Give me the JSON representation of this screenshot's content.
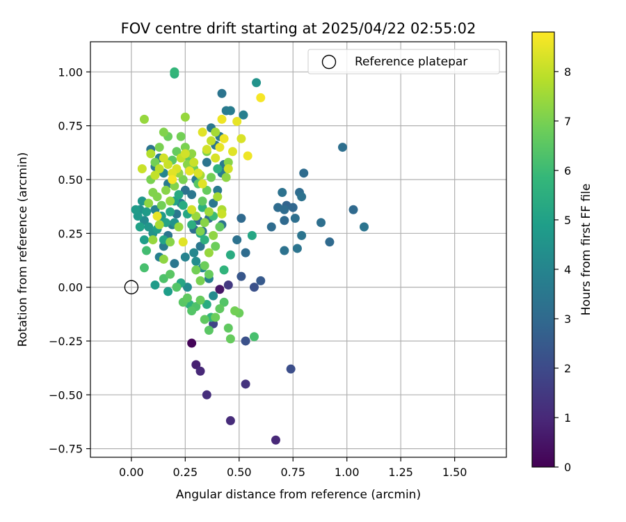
{
  "chart_data": {
    "type": "scatter",
    "title": "FOV centre drift starting at 2025/04/22 02:55:02",
    "xlabel": "Angular distance from reference (arcmin)",
    "ylabel": "Rotation from reference (arcmin)",
    "xlim": [
      -0.19,
      1.74
    ],
    "ylim": [
      -0.79,
      1.14
    ],
    "xticks": [
      0.0,
      0.25,
      0.5,
      0.75,
      1.0,
      1.25,
      1.5
    ],
    "xtick_labels": [
      "0.00",
      "0.25",
      "0.50",
      "0.75",
      "1.00",
      "1.25",
      "1.50"
    ],
    "yticks": [
      -0.75,
      -0.5,
      -0.25,
      0.0,
      0.25,
      0.5,
      0.75,
      1.0
    ],
    "ytick_labels": [
      "−0.75",
      "−0.50",
      "−0.25",
      "0.00",
      "0.25",
      "0.50",
      "0.75",
      "1.00"
    ],
    "grid": true,
    "legend": {
      "placement": "top-right",
      "entries": [
        "Reference platepar"
      ]
    },
    "reference_point": {
      "name": "Reference platepar",
      "x": 0.0,
      "y": 0.0,
      "marker": "open-circle"
    },
    "colorbar": {
      "label": "Hours from first FF file",
      "range": [
        0,
        8.8
      ],
      "ticks": [
        0,
        1,
        2,
        3,
        4,
        5,
        6,
        7,
        8
      ],
      "tick_labels": [
        "0",
        "1",
        "2",
        "3",
        "4",
        "5",
        "6",
        "7",
        "8"
      ],
      "colormap": "viridis",
      "stops": [
        "#440154",
        "#482878",
        "#3e4989",
        "#31688e",
        "#26828e",
        "#1f9e89",
        "#35b779",
        "#6ece58",
        "#b5de2b",
        "#fde725"
      ]
    },
    "points": [
      [
        0.28,
        -0.26,
        0.1
      ],
      [
        0.3,
        -0.36,
        0.8
      ],
      [
        0.32,
        -0.39,
        1.0
      ],
      [
        0.35,
        -0.5,
        1.2
      ],
      [
        0.46,
        -0.62,
        1.1
      ],
      [
        0.53,
        -0.45,
        1.3
      ],
      [
        0.67,
        -0.71,
        1.0
      ],
      [
        0.74,
        -0.38,
        2.1
      ],
      [
        0.53,
        -0.25,
        2.2
      ],
      [
        0.41,
        -0.01,
        0.5
      ],
      [
        0.45,
        0.01,
        1.5
      ],
      [
        0.51,
        0.05,
        2.4
      ],
      [
        0.57,
        0.0,
        2.2
      ],
      [
        0.6,
        0.03,
        2.5
      ],
      [
        0.38,
        -0.17,
        1.8
      ],
      [
        0.49,
        0.22,
        3.3
      ],
      [
        0.53,
        0.16,
        3.1
      ],
      [
        0.51,
        0.32,
        3.0
      ],
      [
        0.65,
        0.28,
        3.1
      ],
      [
        0.68,
        0.37,
        3.1
      ],
      [
        0.71,
        0.31,
        3.0
      ],
      [
        0.71,
        0.17,
        3.3
      ],
      [
        0.72,
        0.38,
        2.8
      ],
      [
        0.75,
        0.37,
        2.9
      ],
      [
        0.76,
        0.32,
        3.2
      ],
      [
        0.77,
        0.18,
        3.4
      ],
      [
        0.78,
        0.44,
        3.1
      ],
      [
        0.79,
        0.42,
        3.3
      ],
      [
        0.79,
        0.24,
        3.4
      ],
      [
        0.8,
        0.53,
        3.1
      ],
      [
        0.88,
        0.3,
        3.2
      ],
      [
        0.92,
        0.21,
        3.0
      ],
      [
        0.98,
        0.65,
        3.2
      ],
      [
        1.03,
        0.36,
        3.0
      ],
      [
        1.08,
        0.28,
        3.4
      ],
      [
        0.7,
        0.44,
        3.3
      ],
      [
        0.71,
        0.36,
        3.1
      ],
      [
        0.42,
        0.9,
        3.4
      ],
      [
        0.44,
        0.82,
        3.6
      ],
      [
        0.46,
        0.82,
        3.7
      ],
      [
        0.52,
        0.8,
        3.8
      ],
      [
        0.58,
        0.95,
        4.5
      ],
      [
        0.37,
        0.74,
        3.5
      ],
      [
        0.39,
        0.66,
        3.4
      ],
      [
        0.41,
        0.7,
        3.5
      ],
      [
        0.43,
        0.57,
        3.6
      ],
      [
        0.42,
        0.53,
        3.7
      ],
      [
        0.4,
        0.45,
        3.6
      ],
      [
        0.38,
        0.39,
        3.5
      ],
      [
        0.42,
        0.29,
        3.4
      ],
      [
        0.36,
        0.32,
        3.2
      ],
      [
        0.33,
        0.26,
        3.3
      ],
      [
        0.31,
        0.31,
        3.0
      ],
      [
        0.29,
        0.27,
        3.2
      ],
      [
        0.32,
        0.19,
        3.5
      ],
      [
        0.35,
        0.58,
        3.4
      ],
      [
        0.3,
        0.5,
        3.7
      ],
      [
        0.28,
        0.43,
        3.5
      ],
      [
        0.25,
        0.45,
        3.3
      ],
      [
        0.23,
        0.39,
        3.6
      ],
      [
        0.21,
        0.34,
        3.5
      ],
      [
        0.19,
        0.29,
        3.7
      ],
      [
        0.17,
        0.24,
        3.4
      ],
      [
        0.15,
        0.19,
        3.6
      ],
      [
        0.13,
        0.14,
        3.8
      ],
      [
        0.11,
        0.36,
        3.9
      ],
      [
        0.09,
        0.64,
        3.4
      ],
      [
        0.11,
        0.56,
        3.6
      ],
      [
        0.13,
        0.6,
        3.8
      ],
      [
        0.15,
        0.53,
        4.0
      ],
      [
        0.17,
        0.48,
        3.6
      ],
      [
        0.2,
        0.11,
        3.5
      ],
      [
        0.25,
        0.14,
        3.9
      ],
      [
        0.29,
        0.16,
        4.1
      ],
      [
        0.3,
        0.12,
        4.3
      ],
      [
        0.33,
        0.09,
        4.1
      ],
      [
        0.36,
        0.04,
        3.8
      ],
      [
        0.38,
        -0.04,
        4.2
      ],
      [
        0.26,
        0.0,
        4.2
      ],
      [
        0.2,
        0.3,
        4.5
      ],
      [
        0.04,
        0.36,
        4.4
      ],
      [
        0.06,
        0.31,
        4.2
      ],
      [
        0.05,
        0.4,
        4.6
      ],
      [
        0.08,
        0.28,
        4.6
      ],
      [
        0.03,
        0.33,
        4.7
      ],
      [
        0.02,
        0.36,
        4.8
      ],
      [
        0.07,
        0.35,
        4.8
      ],
      [
        0.06,
        0.22,
        4.9
      ],
      [
        0.04,
        0.28,
        5.0
      ],
      [
        0.1,
        0.25,
        4.5
      ],
      [
        0.12,
        0.27,
        4.9
      ],
      [
        0.14,
        0.33,
        4.7
      ],
      [
        0.16,
        0.3,
        5.1
      ],
      [
        0.18,
        0.35,
        5.2
      ],
      [
        0.2,
        0.4,
        5.0
      ],
      [
        0.22,
        0.43,
        5.3
      ],
      [
        0.24,
        0.38,
        5.4
      ],
      [
        0.26,
        0.34,
        5.2
      ],
      [
        0.28,
        0.29,
        5.5
      ],
      [
        0.32,
        0.25,
        5.3
      ],
      [
        0.34,
        0.22,
        5.6
      ],
      [
        0.33,
        0.37,
        5.6
      ],
      [
        0.15,
        0.22,
        5.1
      ],
      [
        0.11,
        0.01,
        4.8
      ],
      [
        0.17,
        -0.02,
        4.9
      ],
      [
        0.23,
        0.02,
        5.2
      ],
      [
        0.27,
        -0.08,
        5.6
      ],
      [
        0.35,
        -0.08,
        5.4
      ],
      [
        0.37,
        -0.14,
        5.8
      ],
      [
        0.43,
        0.08,
        5.7
      ],
      [
        0.46,
        0.15,
        5.4
      ],
      [
        0.56,
        0.24,
        5.2
      ],
      [
        0.2,
        0.99,
        5.6
      ],
      [
        0.2,
        1.0,
        5.8
      ],
      [
        0.4,
        0.55,
        5.6
      ],
      [
        0.38,
        0.33,
        6.0
      ],
      [
        0.07,
        0.17,
        6.1
      ],
      [
        0.06,
        0.09,
        6.2
      ],
      [
        0.15,
        0.04,
        6.3
      ],
      [
        0.18,
        0.06,
        6.5
      ],
      [
        0.21,
        0.0,
        6.4
      ],
      [
        0.24,
        -0.07,
        6.5
      ],
      [
        0.26,
        -0.05,
        6.6
      ],
      [
        0.28,
        -0.11,
        6.4
      ],
      [
        0.3,
        -0.09,
        6.3
      ],
      [
        0.32,
        -0.06,
        6.7
      ],
      [
        0.34,
        -0.15,
        6.6
      ],
      [
        0.36,
        -0.2,
        6.5
      ],
      [
        0.39,
        -0.14,
        6.8
      ],
      [
        0.41,
        -0.1,
        6.6
      ],
      [
        0.43,
        -0.07,
        6.4
      ],
      [
        0.45,
        -0.19,
        6.6
      ],
      [
        0.46,
        -0.24,
        6.7
      ],
      [
        0.48,
        -0.11,
        6.9
      ],
      [
        0.5,
        -0.12,
        6.8
      ],
      [
        0.57,
        -0.23,
        6.2
      ],
      [
        0.3,
        0.08,
        6.9
      ],
      [
        0.32,
        0.03,
        7.0
      ],
      [
        0.34,
        0.1,
        6.8
      ],
      [
        0.36,
        0.06,
        6.7
      ],
      [
        0.39,
        0.19,
        6.8
      ],
      [
        0.41,
        0.28,
        6.6
      ],
      [
        0.37,
        0.51,
        6.9
      ],
      [
        0.35,
        0.45,
        6.7
      ],
      [
        0.33,
        0.4,
        6.6
      ],
      [
        0.31,
        0.48,
        6.5
      ],
      [
        0.29,
        0.55,
        6.8
      ],
      [
        0.27,
        0.6,
        6.6
      ],
      [
        0.25,
        0.65,
        7.0
      ],
      [
        0.23,
        0.7,
        6.9
      ],
      [
        0.21,
        0.63,
        6.7
      ],
      [
        0.19,
        0.59,
        6.5
      ],
      [
        0.17,
        0.7,
        6.8
      ],
      [
        0.15,
        0.72,
        7.1
      ],
      [
        0.13,
        0.65,
        7.0
      ],
      [
        0.11,
        0.58,
        6.9
      ],
      [
        0.09,
        0.5,
        7.0
      ],
      [
        0.1,
        0.44,
        7.1
      ],
      [
        0.08,
        0.39,
        7.3
      ],
      [
        0.12,
        0.42,
        7.1
      ],
      [
        0.14,
        0.38,
        6.9
      ],
      [
        0.16,
        0.45,
        7.2
      ],
      [
        0.18,
        0.4,
        7.4
      ],
      [
        0.2,
        0.47,
        7.1
      ],
      [
        0.22,
        0.53,
        7.3
      ],
      [
        0.24,
        0.5,
        7.0
      ],
      [
        0.26,
        0.57,
        7.2
      ],
      [
        0.28,
        0.62,
        7.3
      ],
      [
        0.3,
        0.33,
        7.4
      ],
      [
        0.32,
        0.26,
        7.1
      ],
      [
        0.34,
        0.3,
        7.2
      ],
      [
        0.36,
        0.35,
        7.5
      ],
      [
        0.38,
        0.24,
        7.3
      ],
      [
        0.36,
        0.16,
        7.4
      ],
      [
        0.06,
        0.78,
        7.4
      ],
      [
        0.25,
        0.79,
        7.4
      ],
      [
        0.35,
        0.63,
        7.1
      ],
      [
        0.39,
        0.72,
        7.6
      ],
      [
        0.4,
        0.42,
        7.6
      ],
      [
        0.42,
        0.36,
        7.7
      ],
      [
        0.1,
        0.22,
        7.4
      ],
      [
        0.13,
        0.29,
        7.6
      ],
      [
        0.22,
        0.28,
        7.4
      ],
      [
        0.45,
        0.58,
        7.2
      ],
      [
        0.44,
        0.51,
        7.3
      ],
      [
        0.18,
        0.21,
        7.2
      ],
      [
        0.15,
        0.13,
        7.3
      ],
      [
        0.32,
        0.52,
        7.6
      ],
      [
        0.09,
        0.62,
        7.8
      ],
      [
        0.11,
        0.52,
        8.0
      ],
      [
        0.13,
        0.55,
        7.9
      ],
      [
        0.15,
        0.6,
        8.2
      ],
      [
        0.17,
        0.57,
        8.1
      ],
      [
        0.19,
        0.53,
        8.4
      ],
      [
        0.21,
        0.55,
        8.3
      ],
      [
        0.23,
        0.6,
        8.0
      ],
      [
        0.25,
        0.62,
        8.2
      ],
      [
        0.27,
        0.54,
        8.5
      ],
      [
        0.29,
        0.58,
        8.1
      ],
      [
        0.31,
        0.53,
        8.3
      ],
      [
        0.33,
        0.48,
        8.4
      ],
      [
        0.35,
        0.64,
        8.2
      ],
      [
        0.37,
        0.68,
        8.0
      ],
      [
        0.39,
        0.6,
        8.3
      ],
      [
        0.41,
        0.65,
        8.5
      ],
      [
        0.43,
        0.69,
        8.6
      ],
      [
        0.45,
        0.55,
        8.2
      ],
      [
        0.47,
        0.63,
        8.4
      ],
      [
        0.49,
        0.77,
        8.5
      ],
      [
        0.51,
        0.69,
        8.3
      ],
      [
        0.54,
        0.61,
        8.6
      ],
      [
        0.6,
        0.88,
        8.7
      ],
      [
        0.42,
        0.78,
        8.6
      ],
      [
        0.33,
        0.72,
        8.4
      ],
      [
        0.28,
        0.36,
        8.2
      ],
      [
        0.24,
        0.21,
        8.4
      ],
      [
        0.12,
        0.33,
        8.5
      ],
      [
        0.05,
        0.55,
        8.1
      ],
      [
        0.19,
        0.5,
        8.7
      ],
      [
        0.42,
        0.34,
        8.1
      ]
    ]
  }
}
